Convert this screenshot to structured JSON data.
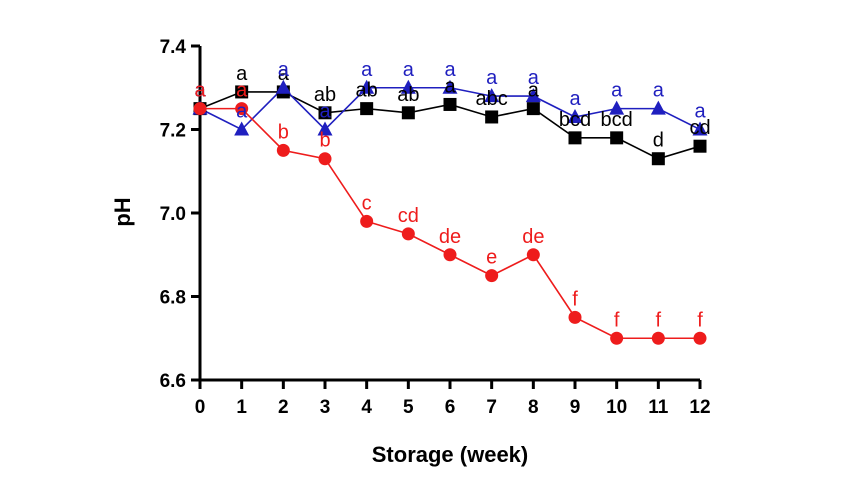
{
  "chart_data": {
    "type": "line",
    "xlabel": "Storage (week)",
    "ylabel": "pH",
    "xlim": [
      0,
      12
    ],
    "ylim": [
      6.6,
      7.4
    ],
    "x_ticks": [
      "0",
      "1",
      "2",
      "3",
      "4",
      "5",
      "6",
      "7",
      "8",
      "9",
      "10",
      "11",
      "12"
    ],
    "y_ticks": [
      "6.6",
      "6.8",
      "7.0",
      "7.2",
      "7.4"
    ],
    "x": [
      0,
      1,
      2,
      3,
      4,
      5,
      6,
      7,
      8,
      9,
      10,
      11,
      12
    ],
    "grid": false,
    "legend": "none",
    "series": [
      {
        "color": "#000000",
        "marker": "square",
        "values": [
          7.25,
          7.29,
          7.29,
          7.24,
          7.25,
          7.24,
          7.26,
          7.23,
          7.25,
          7.18,
          7.18,
          7.13,
          7.16
        ],
        "labels": [
          "a",
          "a",
          "a",
          "ab",
          "ab",
          "ab",
          "a",
          "abc",
          "a",
          "bcd",
          "bcd",
          "d",
          "cd"
        ]
      },
      {
        "color": "#1f1fbf",
        "marker": "triangle",
        "values": [
          7.25,
          7.2,
          7.3,
          7.2,
          7.3,
          7.3,
          7.3,
          7.28,
          7.28,
          7.23,
          7.25,
          7.25,
          7.2
        ],
        "labels": [
          "a",
          "a",
          "a",
          "a",
          "a",
          "a",
          "a",
          "a",
          "a",
          "a",
          "a",
          "a",
          "a"
        ]
      },
      {
        "color": "#ee1c1c",
        "marker": "circle",
        "values": [
          7.25,
          7.25,
          7.15,
          7.13,
          6.98,
          6.95,
          6.9,
          6.85,
          6.9,
          6.75,
          6.7,
          6.7,
          6.7
        ],
        "labels": [
          "a",
          "a",
          "b",
          "b",
          "c",
          "cd",
          "de",
          "e",
          "de",
          "f",
          "f",
          "f",
          "f"
        ]
      }
    ]
  }
}
